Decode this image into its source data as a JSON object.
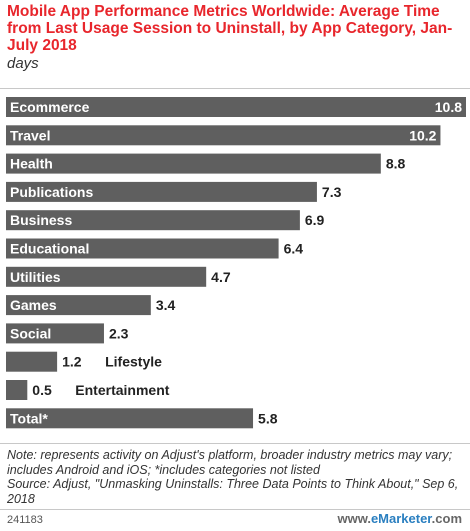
{
  "header": {
    "title": "Mobile App Performance Metrics Worldwide: Average Time from Last Usage Session to Uninstall, by App Category, Jan-July 2018",
    "subtitle": "days"
  },
  "chart_data": {
    "type": "bar",
    "orientation": "horizontal",
    "title": "Mobile App Performance Metrics Worldwide: Average Time from Last Usage Session to Uninstall, by App Category, Jan-July 2018",
    "subtitle": "days",
    "categories": [
      "Ecommerce",
      "Travel",
      "Health",
      "Publications",
      "Business",
      "Educational",
      "Utilities",
      "Games",
      "Social",
      "Lifestyle",
      "Entertainment",
      "Total*"
    ],
    "values": [
      10.8,
      10.2,
      8.8,
      7.3,
      6.9,
      6.4,
      4.7,
      3.4,
      2.3,
      1.2,
      0.5,
      5.8
    ],
    "value_labels": [
      "10.8",
      "10.2",
      "8.8",
      "7.3",
      "6.9",
      "6.4",
      "4.7",
      "3.4",
      "2.3",
      "1.2",
      "0.5",
      "5.8"
    ],
    "xlim": [
      0,
      10.8
    ],
    "bar_color": "#5f5f5f",
    "grid": false,
    "legend": "none"
  },
  "footer": {
    "note": "Note: represents activity on Adjust's platform, broader industry metrics may vary; includes Android and iOS; *includes categories not listed",
    "source": "Source: Adjust, \"Unmasking Uninstalls: Three Data Points to Think About,\" Sep 6, 2018",
    "chart_id": "241183",
    "brand_prefix": "www.",
    "brand_name": "eMarketer",
    "brand_suffix": ".com"
  },
  "colors": {
    "title": "#e8262c",
    "bar": "#5f5f5f",
    "label_on_bar": "#ffffff",
    "label_outside": "#222222",
    "brand_accent": "#2a7fc0"
  }
}
